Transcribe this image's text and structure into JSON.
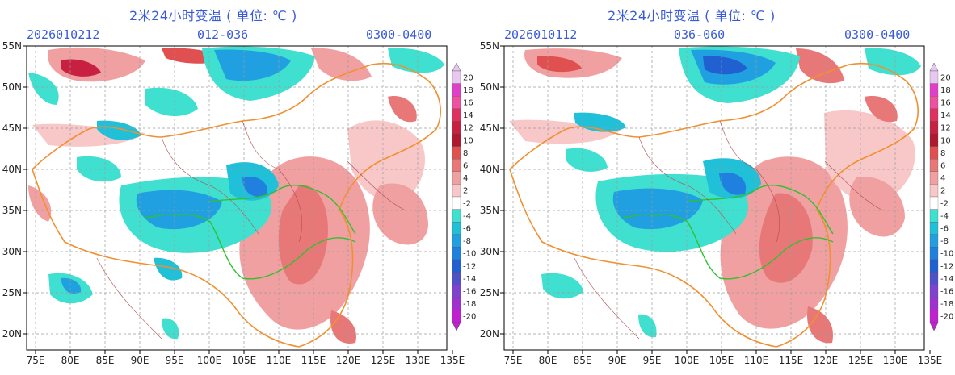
{
  "panels": [
    {
      "title": "2米24小时变温 ( 单位: ℃ )",
      "init": "2026010212",
      "forecast": "012-036",
      "window": "0300-0400"
    },
    {
      "title": "2米24小时变温 ( 单位: ℃ )",
      "init": "2026010112",
      "forecast": "036-060",
      "window": "0300-0400"
    }
  ],
  "axes": {
    "lat_labels": [
      "55N",
      "50N",
      "45N",
      "40N",
      "35N",
      "30N",
      "25N",
      "20N"
    ],
    "lon_labels": [
      "75E",
      "80E",
      "85E",
      "90E",
      "95E",
      "100E",
      "105E",
      "110E",
      "115E",
      "120E",
      "125E",
      "130E",
      "135E"
    ]
  },
  "colorbar": {
    "labels": [
      "20",
      "18",
      "16",
      "14",
      "12",
      "10",
      "8",
      "6",
      "4",
      "2",
      "-2",
      "-4",
      "-6",
      "-8",
      "-10",
      "-12",
      "-14",
      "-16",
      "-18",
      "-20"
    ],
    "colors": [
      "#e8c8f0",
      "#e040c8",
      "#f050a0",
      "#e03060",
      "#c82040",
      "#b01830",
      "#e05050",
      "#e87878",
      "#f0a0a0",
      "#f8c8c8",
      "#ffffff",
      "#40e0d0",
      "#20c0d8",
      "#20a0e0",
      "#2080e0",
      "#2060d0",
      "#5050c8",
      "#8040d0",
      "#a030d0",
      "#c020d0"
    ]
  }
}
